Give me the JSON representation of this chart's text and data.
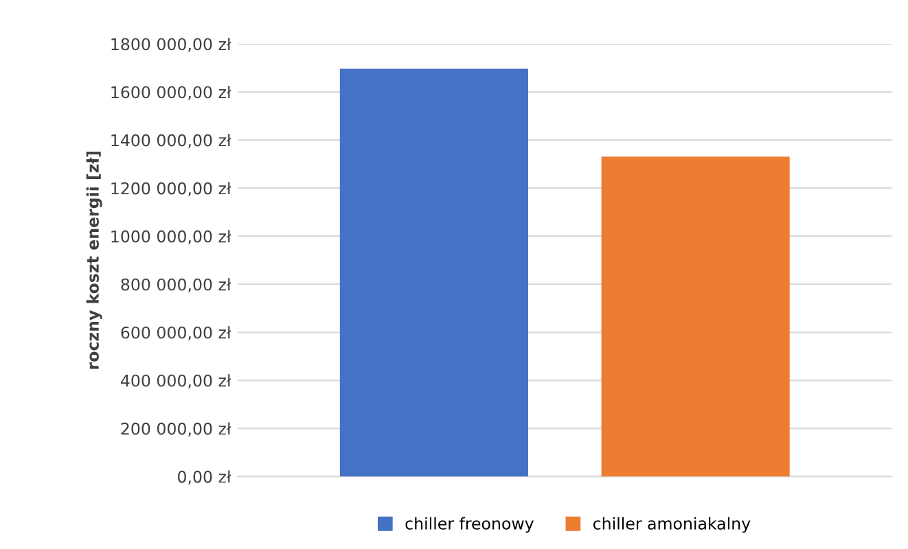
{
  "chart_data": {
    "type": "bar",
    "ylabel": "roczny koszt energii [zł]",
    "categories": [
      null
    ],
    "series": [
      {
        "name": "chiller freonowy",
        "color": "#4472c4",
        "values": [
          1697000
        ]
      },
      {
        "name": "chiller amoniakalny",
        "color": "#ed7d31",
        "values": [
          1331000
        ]
      }
    ],
    "ylim": [
      0,
      1800000
    ],
    "yticks": [
      {
        "value": 0,
        "label": "0,00 zł"
      },
      {
        "value": 200000,
        "label": "200 000,00 zł"
      },
      {
        "value": 400000,
        "label": "400 000,00 zł"
      },
      {
        "value": 600000,
        "label": "600 000,00 zł"
      },
      {
        "value": 800000,
        "label": "800 000,00 zł"
      },
      {
        "value": 1000000,
        "label": "1000 000,00 zł"
      },
      {
        "value": 1200000,
        "label": "1200 000,00 zł"
      },
      {
        "value": 1400000,
        "label": "1400 000,00 zł"
      },
      {
        "value": 1600000,
        "label": "1600 000,00 zł"
      },
      {
        "value": 1800000,
        "label": "1800 000,00 zł"
      }
    ],
    "grid": "y",
    "legend": "bottom"
  }
}
